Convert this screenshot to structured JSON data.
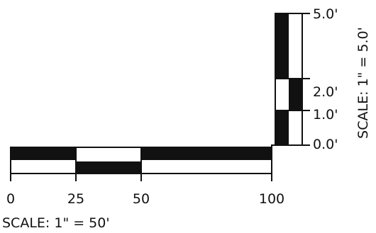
{
  "horizontal_scale": {
    "tick_labels": [
      "0",
      "25",
      "50",
      "100"
    ],
    "caption": "SCALE: 1\" = 50'"
  },
  "vertical_scale": {
    "tick_labels": [
      "5.0'",
      "2.0'",
      "1.0'",
      "0.0'"
    ],
    "caption": "SCALE: 1\" = 5.0'"
  }
}
